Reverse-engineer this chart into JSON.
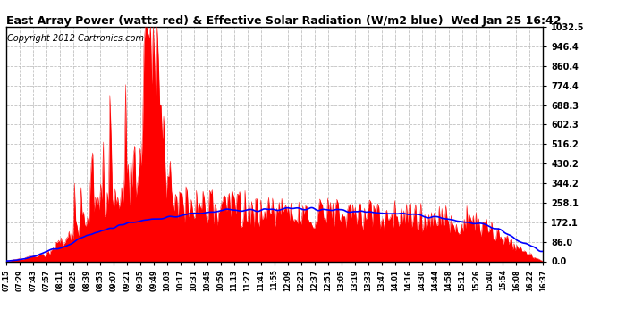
{
  "title": "East Array Power (watts red) & Effective Solar Radiation (W/m2 blue)  Wed Jan 25 16:42",
  "copyright": "Copyright 2012 Cartronics.com",
  "ylabel_right_ticks": [
    0.0,
    86.0,
    172.1,
    258.1,
    344.2,
    430.2,
    516.2,
    602.3,
    688.3,
    774.4,
    860.4,
    946.4,
    1032.5
  ],
  "ymax": 1032.5,
  "ymin": 0.0,
  "background_color": "#ffffff",
  "grid_color": "#bbbbbb",
  "red_color": "#ff0000",
  "blue_color": "#0000ff",
  "x_tick_labels": [
    "07:15",
    "07:29",
    "07:43",
    "07:57",
    "08:11",
    "08:25",
    "08:39",
    "08:53",
    "09:07",
    "09:21",
    "09:35",
    "09:49",
    "10:03",
    "10:17",
    "10:31",
    "10:45",
    "10:59",
    "11:13",
    "11:27",
    "11:41",
    "11:55",
    "12:09",
    "12:23",
    "12:37",
    "12:51",
    "13:05",
    "13:19",
    "13:33",
    "13:47",
    "14:01",
    "14:16",
    "14:30",
    "14:44",
    "14:58",
    "15:12",
    "15:26",
    "15:40",
    "15:54",
    "16:08",
    "16:22",
    "16:37"
  ],
  "title_fontsize": 9,
  "copyright_fontsize": 7
}
